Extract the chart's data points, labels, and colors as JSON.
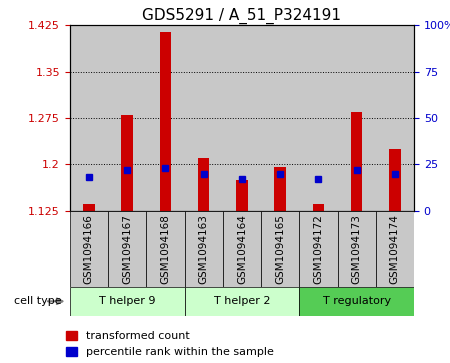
{
  "title": "GDS5291 / A_51_P324191",
  "samples": [
    "GSM1094166",
    "GSM1094167",
    "GSM1094168",
    "GSM1094163",
    "GSM1094164",
    "GSM1094165",
    "GSM1094172",
    "GSM1094173",
    "GSM1094174"
  ],
  "transformed_count": [
    1.135,
    1.28,
    1.415,
    1.21,
    1.175,
    1.195,
    1.135,
    1.285,
    1.225
  ],
  "percentile_rank": [
    18,
    22,
    23,
    20,
    17,
    20,
    17,
    22,
    20
  ],
  "ylim_left": [
    1.125,
    1.425
  ],
  "ylim_right": [
    0,
    100
  ],
  "yticks_left": [
    1.125,
    1.2,
    1.275,
    1.35,
    1.425
  ],
  "yticks_right": [
    0,
    25,
    50,
    75,
    100
  ],
  "ytick_labels_left": [
    "1.125",
    "1.2",
    "1.275",
    "1.35",
    "1.425"
  ],
  "ytick_labels_right": [
    "0",
    "25",
    "50",
    "75",
    "100%"
  ],
  "bar_bottom": 1.125,
  "cell_types": [
    {
      "label": "T helper 9",
      "start": 0,
      "end": 3
    },
    {
      "label": "T helper 2",
      "start": 3,
      "end": 6
    },
    {
      "label": "T regulatory",
      "start": 6,
      "end": 9
    }
  ],
  "cell_type_colors": [
    "#ccffcc",
    "#ccffcc",
    "#55cc55"
  ],
  "bar_color": "#cc0000",
  "percentile_color": "#0000cc",
  "column_bg_color": "#c8c8c8",
  "plot_bg_color": "#ffffff",
  "grid_color": "#000000",
  "title_fontsize": 11,
  "label_fontsize": 7.5,
  "tick_fontsize": 8,
  "legend_fontsize": 8,
  "bar_width": 0.3
}
